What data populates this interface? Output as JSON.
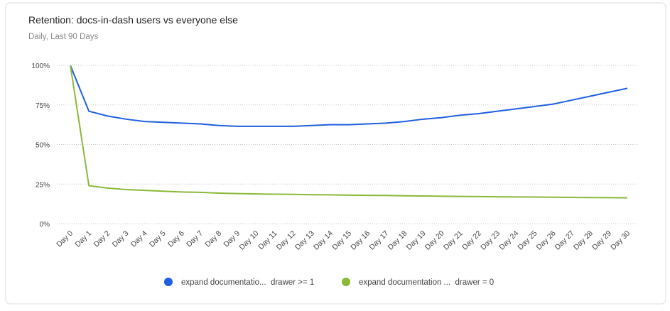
{
  "chart_data": {
    "type": "line",
    "title": "Retention: docs-in-dash users vs everyone else",
    "subtitle": "Daily, Last 90 Days",
    "categories": [
      "Day 0",
      "Day 1",
      "Day 2",
      "Day 3",
      "Day 4",
      "Day 5",
      "Day 6",
      "Day 7",
      "Day 8",
      "Day 9",
      "Day 10",
      "Day 11",
      "Day 12",
      "Day 13",
      "Day 14",
      "Day 15",
      "Day 16",
      "Day 17",
      "Day 18",
      "Day 19",
      "Day 20",
      "Day 21",
      "Day 22",
      "Day 23",
      "Day 24",
      "Day 25",
      "Day 26",
      "Day 27",
      "Day 28",
      "Day 29",
      "Day 30"
    ],
    "series": [
      {
        "name": "expand documentatio...  drawer >= 1",
        "color": "#1f5fe0",
        "values": [
          100,
          71,
          68,
          66,
          64.5,
          64,
          63.5,
          63,
          62,
          61.5,
          61.5,
          61.5,
          61.5,
          62,
          62.5,
          62.5,
          63,
          63.5,
          64.5,
          66,
          67,
          68.5,
          69.5,
          71,
          72.5,
          74,
          75.5,
          78,
          80.5,
          83,
          85.5
        ]
      },
      {
        "name": "expand documentation ...  drawer = 0",
        "color": "#8ab93a",
        "values": [
          100,
          24,
          22.5,
          21.5,
          21,
          20.5,
          20,
          19.8,
          19.3,
          19,
          18.8,
          18.6,
          18.5,
          18.3,
          18.2,
          18,
          17.9,
          17.8,
          17.6,
          17.5,
          17.3,
          17.2,
          17.1,
          17,
          16.9,
          16.8,
          16.7,
          16.6,
          16.5,
          16.4,
          16.3
        ]
      }
    ],
    "ylim": [
      0,
      100
    ],
    "yticks": [
      {
        "value": 0,
        "label": "0%"
      },
      {
        "value": 25,
        "label": "25%"
      },
      {
        "value": 50,
        "label": "50%"
      },
      {
        "value": 75,
        "label": "75%"
      },
      {
        "value": 100,
        "label": "100%"
      }
    ],
    "grid": true
  }
}
